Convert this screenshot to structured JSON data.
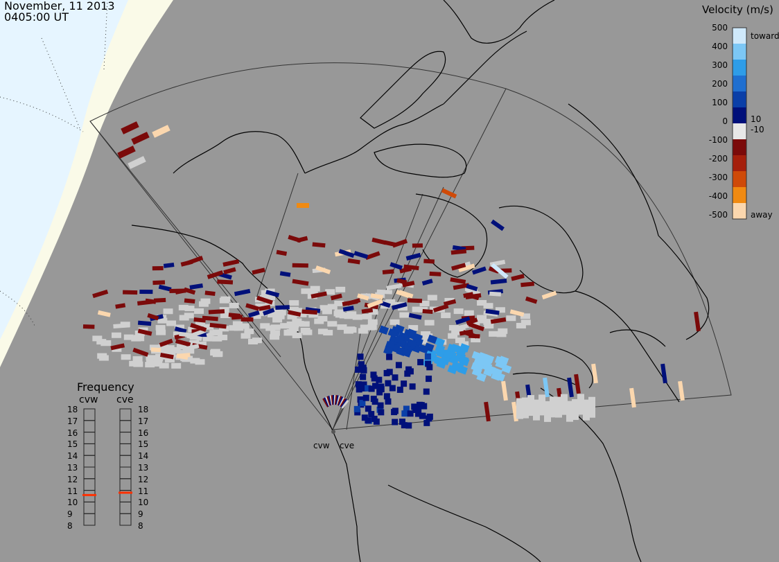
{
  "header": {
    "date": "November, 11 2013",
    "time": "0405:00 UT"
  },
  "velocity_scale": {
    "title": "Velocity (m/s)",
    "ticks": [
      "500",
      "400",
      "300",
      "200",
      "100",
      "0",
      "-100",
      "-200",
      "-300",
      "-400",
      "-500"
    ],
    "side_labels": {
      "top": "toward",
      "inner_pos": "10",
      "inner_neg": "-10",
      "bottom": "away"
    },
    "colors": [
      "#cfe9fb",
      "#7cc7f5",
      "#2e9de8",
      "#1f6fd0",
      "#0a3fa8",
      "#00107a",
      "#e8e8e8",
      "#7b0a0a",
      "#a51f0c",
      "#cf4a08",
      "#f08a12",
      "#fbd7ae"
    ]
  },
  "frequency_panel": {
    "title": "Frequency",
    "radars": [
      "cvw",
      "cve"
    ],
    "ticks": [
      "18",
      "17",
      "16",
      "15",
      "14",
      "13",
      "12",
      "11",
      "10",
      "9",
      "8"
    ],
    "cvw_value_mhz": 10.6,
    "cve_value_mhz": 10.8,
    "marker_color": "#ff3000"
  },
  "sites": {
    "left": "cvw",
    "right": "cve"
  },
  "map": {
    "background": "#989898",
    "night_side": "#e6f5ff",
    "twilight_band": "#fafae8",
    "coastline_color": "#000000"
  }
}
